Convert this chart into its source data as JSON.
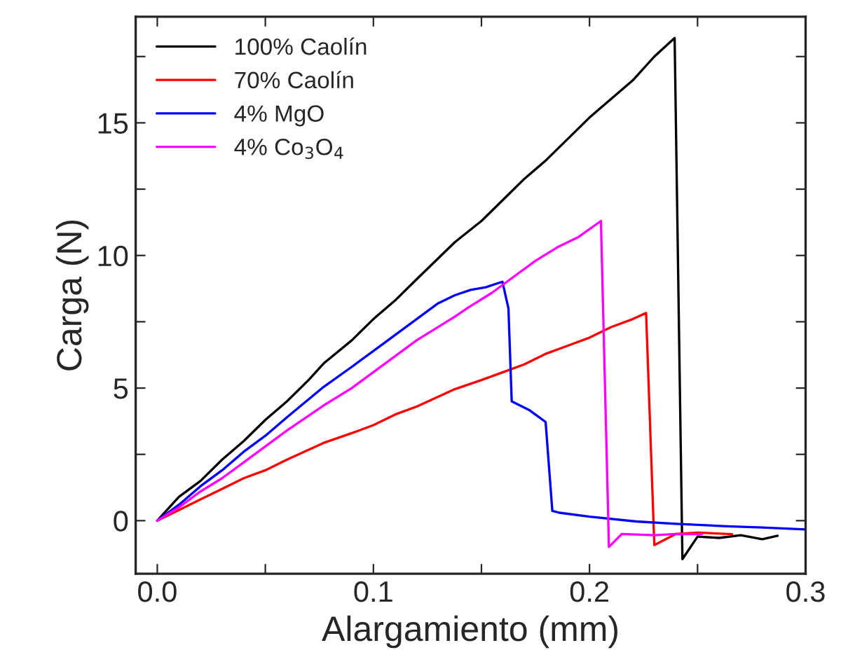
{
  "chart_data": {
    "type": "line",
    "xlabel": "Alargamiento (mm)",
    "ylabel": "Carga (N)",
    "xlim": [
      -0.01,
      0.3
    ],
    "ylim": [
      -2,
      19
    ],
    "xticks": [
      {
        "value": 0,
        "label": "0.0"
      },
      {
        "value": 0.05,
        "label": null
      },
      0.1,
      {
        "value": 0.15,
        "label": null
      },
      0.2,
      {
        "value": 0.25,
        "label": null
      },
      0.3
    ],
    "yticks": [
      0,
      {
        "value": 2.5,
        "label": null
      },
      5,
      {
        "value": 7.5,
        "label": null
      },
      10,
      {
        "value": 12.5,
        "label": null
      },
      15,
      {
        "value": 17.5,
        "label": null
      }
    ],
    "legend": "top left",
    "grid": false,
    "series": [
      {
        "name": "100% Caolín",
        "color": "#000000",
        "x": [
          0,
          0.01,
          0.02,
          0.03,
          0.04,
          0.05,
          0.06,
          0.07,
          0.077,
          0.09,
          0.1,
          0.11,
          0.12,
          0.1377,
          0.15,
          0.16,
          0.17,
          0.18,
          0.19,
          0.2,
          0.21,
          0.22,
          0.23,
          0.2394,
          0.243,
          0.25,
          0.26,
          0.27,
          0.28,
          0.287
        ],
        "values": [
          0,
          0.9,
          1.5,
          2.3,
          3.0,
          3.8,
          4.5,
          5.3,
          5.93,
          6.8,
          7.6,
          8.3,
          9.1,
          10.5,
          11.3,
          12.1,
          12.9,
          13.6,
          14.4,
          15.2,
          15.9,
          16.6,
          17.5,
          18.2,
          -1.45,
          -0.6,
          -0.65,
          -0.55,
          -0.7,
          -0.57
        ]
      },
      {
        "name": "70% Caolín",
        "color": "#ff0000",
        "x": [
          0,
          0.01,
          0.02,
          0.03,
          0.04,
          0.05,
          0.06,
          0.0769,
          0.09,
          0.1,
          0.11,
          0.12,
          0.1377,
          0.15,
          0.16,
          0.17,
          0.18,
          0.19,
          0.2,
          0.21,
          0.22,
          0.2262,
          0.23,
          0.24,
          0.25,
          0.266
        ],
        "values": [
          0,
          0.4,
          0.8,
          1.2,
          1.6,
          1.9,
          2.3,
          2.93,
          3.3,
          3.6,
          4.0,
          4.3,
          4.96,
          5.3,
          5.6,
          5.9,
          6.3,
          6.6,
          6.9,
          7.3,
          7.6,
          7.83,
          -0.92,
          -0.5,
          -0.45,
          -0.51
        ]
      },
      {
        "name": "4% MgO",
        "color": "#0000ff",
        "x": [
          0,
          0.01,
          0.02,
          0.03,
          0.04,
          0.05,
          0.06,
          0.0769,
          0.09,
          0.1,
          0.11,
          0.12,
          0.13,
          0.1377,
          0.145,
          0.152,
          0.1597,
          0.1625,
          0.164,
          0.1723,
          0.1797,
          0.1828,
          0.186,
          0.2,
          0.2216,
          0.24,
          0.2635,
          0.28,
          0.3
        ],
        "values": [
          0,
          0.6,
          1.3,
          1.9,
          2.6,
          3.2,
          3.9,
          5.04,
          5.8,
          6.4,
          7.0,
          7.6,
          8.2,
          8.5,
          8.7,
          8.8,
          9.01,
          8.0,
          4.5,
          4.16,
          3.72,
          0.37,
          0.3,
          0.15,
          -0.03,
          -0.12,
          -0.21,
          -0.26,
          -0.33
        ]
      },
      {
        "name": "4% Co$_{3}$O$_{4}$",
        "color": "#ff00ff",
        "x": [
          0,
          0.01,
          0.02,
          0.03,
          0.04,
          0.05,
          0.06,
          0.0769,
          0.09,
          0.1,
          0.11,
          0.12,
          0.1377,
          0.144,
          0.155,
          0.165,
          0.175,
          0.185,
          0.195,
          0.2053,
          0.209,
          0.215,
          0.23,
          0.24,
          0.252
        ],
        "values": [
          0,
          0.5,
          1.1,
          1.6,
          2.2,
          2.8,
          3.4,
          4.34,
          5.0,
          5.6,
          6.2,
          6.8,
          7.69,
          8.04,
          8.6,
          9.2,
          9.8,
          10.3,
          10.7,
          11.3,
          -0.99,
          -0.5,
          -0.55,
          -0.5,
          -0.51
        ]
      }
    ]
  }
}
